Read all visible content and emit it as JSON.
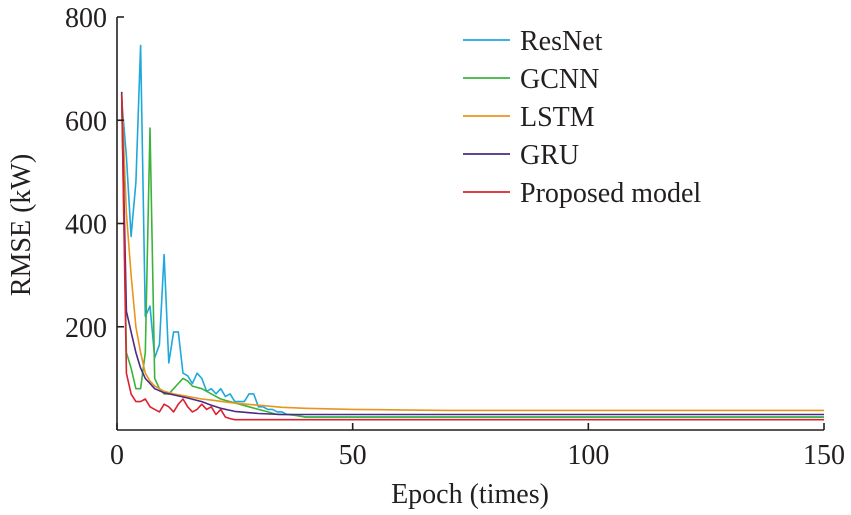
{
  "chart_data": {
    "type": "line",
    "xlabel": "Epoch (times)",
    "ylabel": "RMSE (kW)",
    "xlim": [
      0,
      150
    ],
    "ylim": [
      0,
      800
    ],
    "xticks": [
      0,
      50,
      100,
      150
    ],
    "yticks": [
      200,
      400,
      600,
      800
    ],
    "xtick_labels": [
      "0",
      "50",
      "100",
      "150"
    ],
    "ytick_labels": [
      "200",
      "400",
      "600",
      "800"
    ],
    "grid": false,
    "legend_position": "top-right",
    "series": [
      {
        "name": "ResNet",
        "color": "#1fa8dc",
        "x": [
          1,
          2,
          3,
          4,
          5,
          6,
          7,
          8,
          9,
          10,
          11,
          12,
          13,
          14,
          15,
          16,
          17,
          18,
          19,
          20,
          21,
          22,
          23,
          24,
          25,
          26,
          27,
          28,
          29,
          30,
          31,
          32,
          33,
          34,
          35,
          36,
          37,
          38,
          40,
          45,
          50,
          60,
          80,
          100,
          120,
          150
        ],
        "y": [
          640,
          530,
          375,
          480,
          745,
          220,
          240,
          140,
          165,
          340,
          130,
          190,
          190,
          110,
          105,
          90,
          110,
          100,
          75,
          80,
          70,
          80,
          65,
          70,
          55,
          55,
          55,
          70,
          70,
          45,
          45,
          40,
          40,
          35,
          35,
          30,
          30,
          28,
          25,
          25,
          25,
          25,
          25,
          25,
          25,
          25
        ]
      },
      {
        "name": "GCNN",
        "color": "#3cb23c",
        "x": [
          1,
          2,
          3,
          4,
          5,
          6,
          7,
          8,
          9,
          10,
          11,
          12,
          13,
          14,
          15,
          16,
          18,
          20,
          22,
          24,
          26,
          28,
          30,
          32,
          34,
          36,
          38,
          40,
          45,
          50,
          60,
          80,
          100,
          120,
          150
        ],
        "y": [
          650,
          150,
          120,
          80,
          80,
          150,
          585,
          100,
          80,
          70,
          70,
          80,
          90,
          100,
          95,
          85,
          80,
          70,
          60,
          55,
          50,
          45,
          40,
          35,
          30,
          30,
          28,
          25,
          25,
          25,
          25,
          25,
          25,
          25,
          25
        ]
      },
      {
        "name": "LSTM",
        "color": "#e8951e",
        "x": [
          1,
          2,
          3,
          4,
          5,
          6,
          7,
          8,
          10,
          12,
          15,
          18,
          20,
          25,
          30,
          35,
          40,
          50,
          60,
          70,
          80,
          100,
          120,
          150
        ],
        "y": [
          650,
          420,
          300,
          200,
          150,
          110,
          95,
          85,
          75,
          70,
          65,
          60,
          58,
          52,
          48,
          44,
          42,
          40,
          39,
          38,
          38,
          38,
          38,
          38
        ]
      },
      {
        "name": "GRU",
        "color": "#4b2a85",
        "x": [
          1,
          2,
          3,
          4,
          5,
          6,
          7,
          8,
          10,
          12,
          15,
          18,
          20,
          22,
          25,
          30,
          35,
          40,
          50,
          60,
          80,
          100,
          120,
          150
        ],
        "y": [
          655,
          230,
          190,
          150,
          120,
          100,
          90,
          80,
          72,
          68,
          62,
          55,
          48,
          42,
          36,
          32,
          30,
          30,
          30,
          30,
          30,
          30,
          30,
          30
        ]
      },
      {
        "name": "Proposed model",
        "color": "#d9232e",
        "x": [
          1,
          2,
          3,
          4,
          5,
          6,
          7,
          8,
          9,
          10,
          11,
          12,
          13,
          14,
          15,
          16,
          17,
          18,
          19,
          20,
          21,
          22,
          23,
          24,
          25,
          26,
          28,
          30,
          35,
          40,
          50,
          60,
          80,
          100,
          120,
          150
        ],
        "y": [
          650,
          110,
          70,
          55,
          55,
          60,
          45,
          40,
          35,
          50,
          45,
          35,
          50,
          60,
          45,
          35,
          40,
          50,
          40,
          45,
          30,
          40,
          25,
          22,
          20,
          20,
          20,
          20,
          20,
          20,
          20,
          20,
          20,
          20,
          20,
          20
        ]
      }
    ]
  }
}
